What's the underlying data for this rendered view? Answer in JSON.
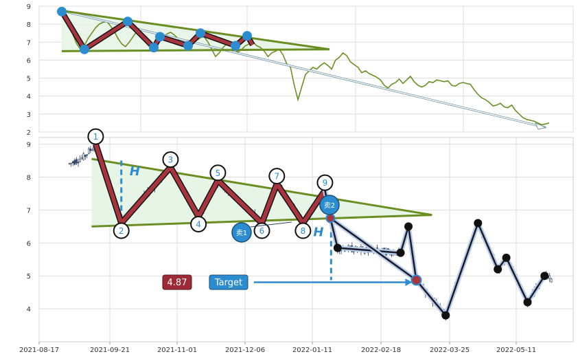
{
  "chart_data": [
    {
      "type": "line",
      "title": "",
      "xlabel": "",
      "ylabel": "",
      "ylim": [
        2,
        9
      ],
      "y_ticks": [
        "9",
        "8",
        "7",
        "6",
        "5",
        "4",
        "3",
        "2"
      ],
      "grid": true,
      "colors": {
        "price": "#6b8e23",
        "pattern": "#a8343e",
        "trend_fill": "#e6f4e6",
        "marker": "#2b8ccf",
        "arrow": "#6e95a8"
      },
      "series": [
        {
          "values": [
            8.7,
            8.5,
            8.0,
            7.4,
            6.9,
            6.6,
            6.8,
            7.2,
            7.5,
            7.8,
            8.0,
            8.1,
            8.15,
            7.9,
            7.6,
            7.2,
            6.9,
            6.75,
            7.0,
            7.3,
            7.6,
            7.55,
            7.3,
            7.1,
            6.9,
            6.85,
            7.05,
            7.25,
            7.45,
            7.55,
            7.4,
            7.2,
            7.0,
            6.85,
            6.8,
            6.95,
            7.1,
            7.25,
            7.3,
            7.0,
            6.6,
            6.2,
            6.4,
            6.7,
            6.9,
            6.8,
            6.6,
            6.45,
            6.6,
            6.8,
            6.9,
            7.0,
            6.8,
            6.7,
            6.5,
            6.2,
            6.4,
            6.5,
            6.6,
            6.3,
            5.8,
            5.6,
            4.6,
            3.8,
            4.5,
            5.2,
            5.4,
            5.6,
            5.5,
            5.7,
            5.85,
            5.7,
            5.5,
            6.0,
            6.15,
            6.4,
            6.25,
            5.9,
            5.75,
            5.6,
            5.3,
            5.4,
            5.25,
            5.15,
            5.05,
            4.9,
            4.6,
            4.45,
            4.65,
            4.75,
            4.95,
            4.7,
            4.9,
            5.1,
            4.8,
            4.6,
            4.5,
            4.6,
            4.8,
            4.75,
            4.9,
            4.85,
            4.8,
            4.85,
            4.6,
            4.55,
            4.7,
            4.75,
            4.7,
            4.65,
            4.35,
            4.1,
            3.9,
            3.8,
            3.65,
            3.45,
            3.5,
            3.6,
            3.4,
            3.35,
            3.5,
            3.2,
            3.0,
            2.8,
            2.7,
            2.65,
            2.6,
            2.5,
            2.4,
            2.45,
            2.5
          ]
        }
      ]
    },
    {
      "type": "candlestick",
      "title": "",
      "xlabel": "",
      "ylabel": "",
      "ylim": [
        3.0,
        9.2
      ],
      "y_ticks": [
        "9",
        "8",
        "7",
        "6",
        "5",
        "4"
      ],
      "x_ticks": [
        "2021-08-17",
        "2021-09-21",
        "2021-11-01",
        "2021-12-06",
        "2022-01-11",
        "2022-02-18",
        "2022-03-25",
        "2022-05-11"
      ],
      "grid": true,
      "pattern_points": [
        {
          "label": "1",
          "date": "2021-09-14",
          "value": 9.0
        },
        {
          "label": "2",
          "date": "2021-09-28",
          "value": 6.6
        },
        {
          "label": "3",
          "date": "2021-10-28",
          "value": 8.3
        },
        {
          "label": "4",
          "date": "2021-11-12",
          "value": 6.8
        },
        {
          "label": "5",
          "date": "2021-11-22",
          "value": 7.9
        },
        {
          "label": "6",
          "date": "2021-12-15",
          "value": 6.6
        },
        {
          "label": "7",
          "date": "2021-12-23",
          "value": 7.8
        },
        {
          "label": "8",
          "date": "2022-01-06",
          "value": 6.6
        },
        {
          "label": "9",
          "date": "2022-01-18",
          "value": 7.6
        }
      ],
      "trend_lines": {
        "upper": [
          {
            "date": "2021-09-12",
            "value": 8.55
          },
          {
            "date": "2022-03-16",
            "value": 6.85
          }
        ],
        "lower": [
          {
            "date": "2021-09-12",
            "value": 6.5
          },
          {
            "date": "2022-03-16",
            "value": 6.85
          }
        ]
      },
      "breakout_points": [
        {
          "date": "2022-01-21",
          "value": 6.75
        },
        {
          "date": "2022-01-25",
          "value": 5.85
        },
        {
          "date": "2022-02-28",
          "value": 5.7
        },
        {
          "date": "2022-03-04",
          "value": 6.5
        },
        {
          "date": "2022-03-08",
          "value": 4.87
        },
        {
          "date": "2022-03-23",
          "value": 3.8
        },
        {
          "date": "2022-04-14",
          "value": 6.6
        },
        {
          "date": "2022-04-28",
          "value": 5.2
        },
        {
          "date": "2022-05-04",
          "value": 5.55
        },
        {
          "date": "2022-05-19",
          "value": 4.2
        },
        {
          "date": "2022-05-31",
          "value": 5.0
        }
      ],
      "annotations": {
        "sell1": "卖1",
        "sell2": "卖2",
        "height_label": "H",
        "target_value": "4.87",
        "target_label": "Target"
      },
      "colors": {
        "upper_line": "#6b8e23",
        "zigzag": "#a8343e",
        "fill": "#e6f4e6",
        "marker": "#2b8ccf",
        "target_box": "#9e2a35",
        "target_label_box": "#2b8ccf",
        "down_path": "#1a1a2e"
      }
    }
  ]
}
